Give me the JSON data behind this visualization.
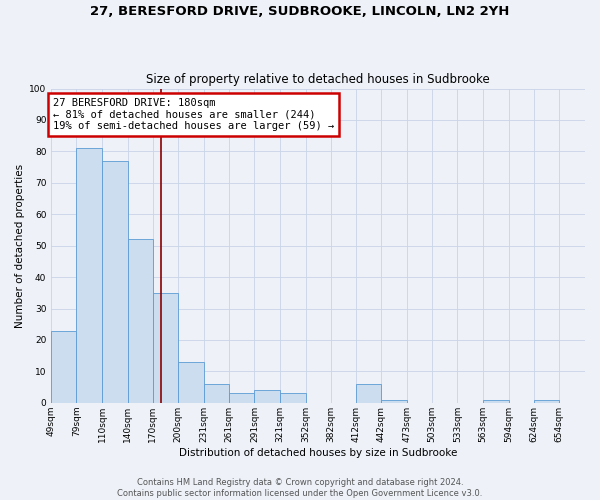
{
  "title": "27, BERESFORD DRIVE, SUDBROOKE, LINCOLN, LN2 2YH",
  "subtitle": "Size of property relative to detached houses in Sudbrooke",
  "xlabel": "Distribution of detached houses by size in Sudbrooke",
  "ylabel": "Number of detached properties",
  "annotation_line1": "27 BERESFORD DRIVE: 180sqm",
  "annotation_line2": "← 81% of detached houses are smaller (244)",
  "annotation_line3": "19% of semi-detached houses are larger (59) →",
  "bin_labels": [
    "49sqm",
    "79sqm",
    "110sqm",
    "140sqm",
    "170sqm",
    "200sqm",
    "231sqm",
    "261sqm",
    "291sqm",
    "321sqm",
    "352sqm",
    "382sqm",
    "412sqm",
    "442sqm",
    "473sqm",
    "503sqm",
    "533sqm",
    "563sqm",
    "594sqm",
    "624sqm",
    "654sqm"
  ],
  "bin_edges": [
    49,
    79,
    110,
    140,
    170,
    200,
    231,
    261,
    291,
    321,
    352,
    382,
    412,
    442,
    473,
    503,
    533,
    563,
    594,
    624,
    654,
    685
  ],
  "values": [
    23,
    81,
    77,
    52,
    35,
    13,
    6,
    3,
    4,
    3,
    0,
    0,
    6,
    1,
    0,
    0,
    0,
    1,
    0,
    1,
    0
  ],
  "bar_color": "#ccddf0",
  "bar_edge_color": "#5b9bd5",
  "vline_color": "#8b0000",
  "vline_x": 180,
  "annotation_box_color": "#ffffff",
  "annotation_box_edge_color": "#cc0000",
  "ylim": [
    0,
    100
  ],
  "yticks": [
    0,
    10,
    20,
    30,
    40,
    50,
    60,
    70,
    80,
    90,
    100
  ],
  "grid_color": "#c8d4e8",
  "bg_color": "#eef2f8",
  "footer1": "Contains HM Land Registry data © Crown copyright and database right 2024.",
  "footer2": "Contains public sector information licensed under the Open Government Licence v3.0.",
  "title_fontsize": 9.5,
  "subtitle_fontsize": 8.5,
  "axis_label_fontsize": 7.5,
  "tick_fontsize": 6.5,
  "annotation_fontsize": 7.5,
  "footer_fontsize": 6
}
